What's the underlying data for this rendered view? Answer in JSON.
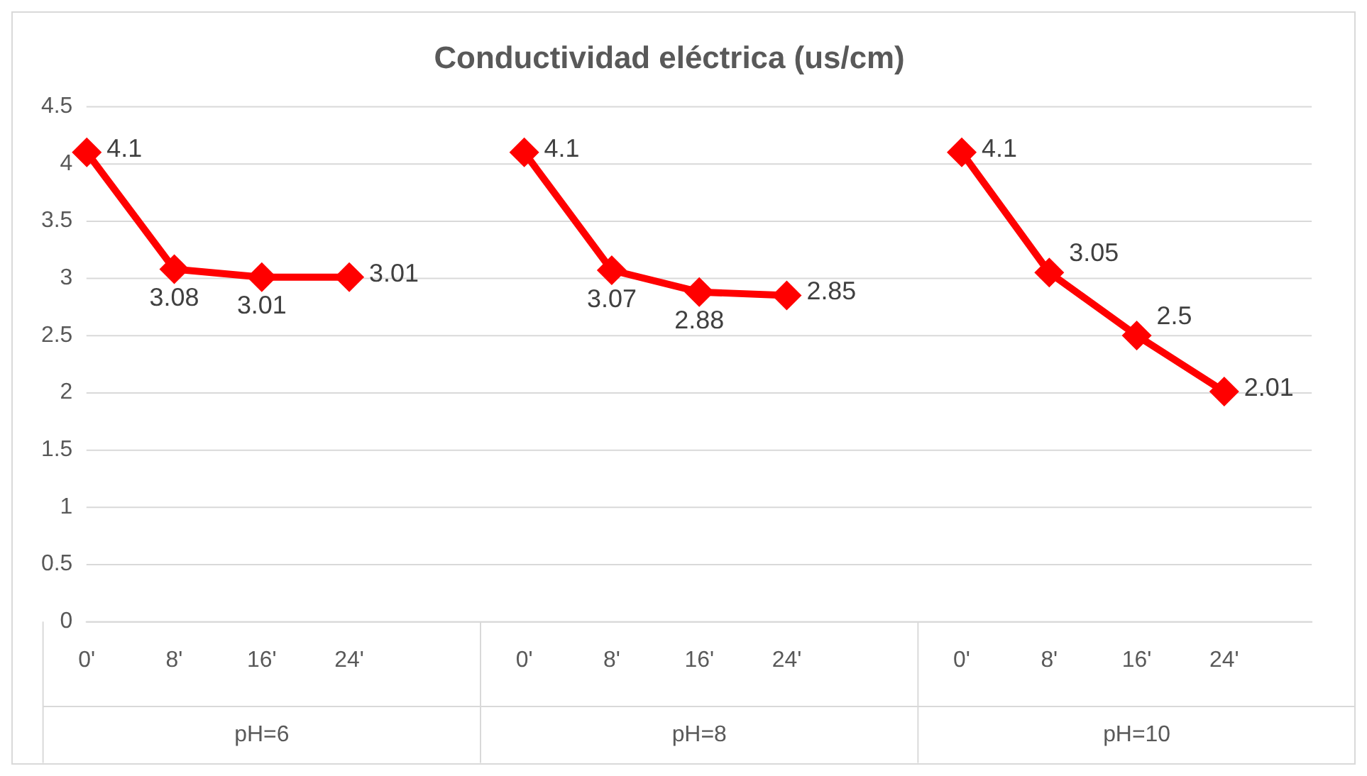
{
  "chart_data": {
    "type": "line",
    "title": "Conductividad eléctrica (us/cm)",
    "categories": [
      "0'",
      "8'",
      "16'",
      "24'",
      null,
      "0'",
      "8'",
      "16'",
      "24'",
      null,
      "0'",
      "8'",
      "16'",
      "24'",
      null
    ],
    "series": [
      {
        "color": "#ff0000",
        "values": [
          4.1,
          3.08,
          3.01,
          3.01,
          null,
          4.1,
          3.07,
          2.88,
          2.85,
          null,
          4.1,
          3.05,
          2.5,
          2.01,
          null
        ]
      }
    ],
    "ylim": [
      0,
      4.5
    ],
    "yticks": [
      0,
      0.5,
      1,
      1.5,
      2,
      2.5,
      3,
      3.5,
      4,
      4.5
    ],
    "annotations": [
      "pH=6",
      "pH=8",
      "pH=10"
    ],
    "data_labels": true,
    "grid": "y",
    "legend": false,
    "marker": "diamond",
    "line_style": "solid"
  }
}
